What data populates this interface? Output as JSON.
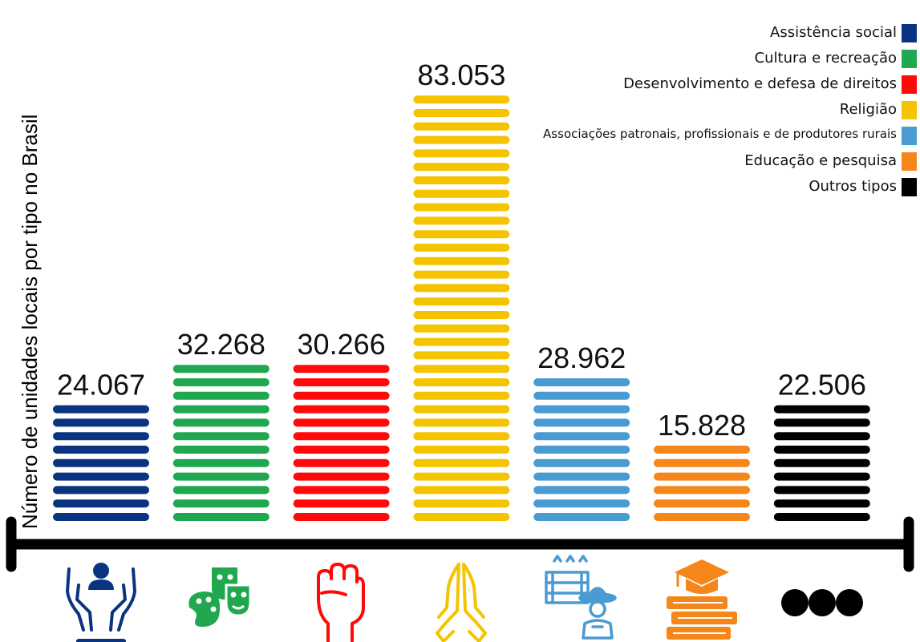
{
  "chart_data": {
    "type": "bar",
    "ylabel": "Número de unidades locais por tipo no Brasil",
    "xlabel": "",
    "ylim": [
      0,
      83053
    ],
    "categories": [
      "Assistência social",
      "Cultura e recreação",
      "Desenvolvimento e defesa de direitos",
      "Religião",
      "Associações patronais, profissionais e de produtores rurais",
      "Educação e pesquisa",
      "Outros tipos"
    ],
    "values": [
      24067,
      32268,
      30266,
      83053,
      28962,
      15828,
      22506
    ],
    "value_labels": [
      "24.067",
      "32.268",
      "30.266",
      "83.053",
      "28.962",
      "15.828",
      "22.506"
    ],
    "colors": [
      "#0a3380",
      "#1fa84f",
      "#ff0a0a",
      "#f5c400",
      "#4a9bd2",
      "#f5861a",
      "#000000"
    ],
    "icons": [
      "hands-person-icon",
      "theater-masks-palette-icon",
      "raised-fist-icon",
      "praying-hands-icon",
      "farmer-crate-icon",
      "books-graduation-cap-icon",
      "ellipsis-icon"
    ],
    "legend_position": "top-right",
    "grid": false
  }
}
